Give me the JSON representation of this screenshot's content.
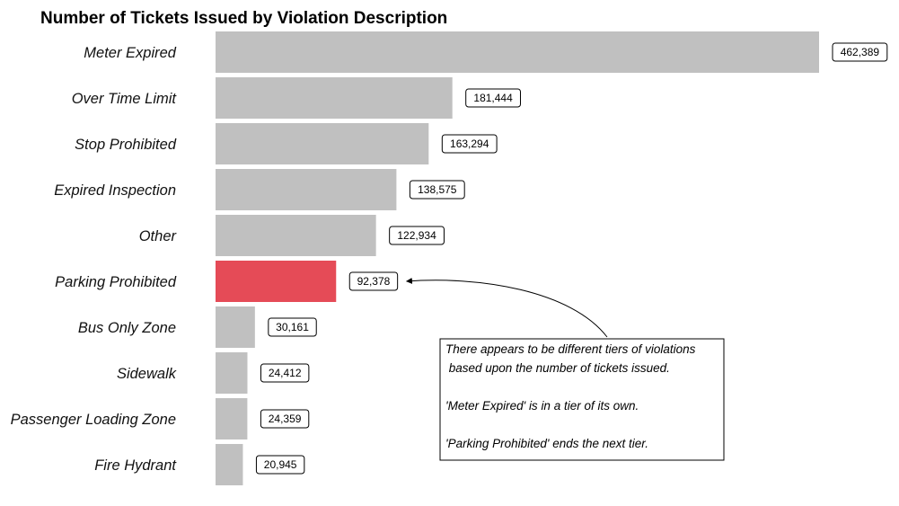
{
  "chart_data": {
    "type": "bar",
    "orientation": "horizontal",
    "title": "Number of Tickets Issued by Violation Description",
    "xlabel": "",
    "ylabel": "",
    "grid": false,
    "legend": "none",
    "categories": [
      "Meter Expired",
      "Over Time Limit",
      "Stop Prohibited",
      "Expired Inspection",
      "Other",
      "Parking Prohibited",
      "Bus Only Zone",
      "Sidewalk",
      "Passenger Loading Zone",
      "Fire Hydrant"
    ],
    "values": [
      462389,
      181444,
      163294,
      138575,
      122934,
      92378,
      30161,
      24412,
      24359,
      20945
    ],
    "data_labels": [
      "462,389",
      "181,444",
      "163,294",
      "138,575",
      "122,934",
      "92,378",
      "30,161",
      "24,412",
      "24,359",
      "20,945"
    ],
    "highlight_category": "Parking Prohibited",
    "colors": {
      "bar": "#c0c0c0",
      "highlight": "#e54b57"
    },
    "annotation": {
      "target": "Parking Prohibited",
      "lines": [
        "There appears to be different tiers of violations",
        " based upon the number of tickets issued.",
        "",
        "'Meter Expired' is in a tier of its own.",
        "",
        "'Parking Prohibited' ends the next tier."
      ]
    }
  }
}
